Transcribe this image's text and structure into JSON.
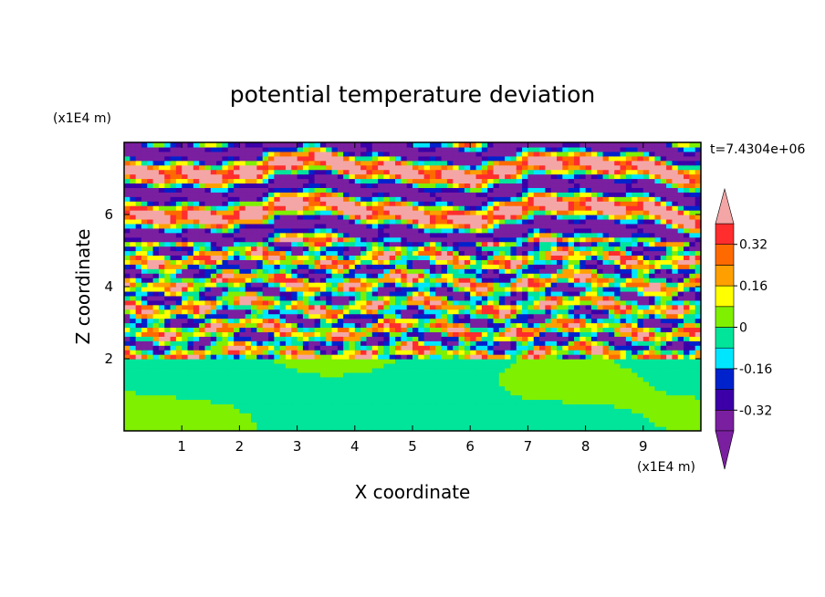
{
  "chart_data": {
    "type": "heatmap",
    "title": "potential temperature deviation",
    "xlabel": "X coordinate",
    "ylabel": "Z coordinate",
    "x_unit": "(x1E4 m)",
    "y_unit": "(x1E4 m)",
    "time_label": "t=7.4304e+06",
    "xlim": [
      0,
      10
    ],
    "ylim": [
      0,
      8
    ],
    "x_ticks": [
      1,
      2,
      3,
      4,
      5,
      6,
      7,
      8,
      9
    ],
    "y_ticks": [
      2,
      4,
      6
    ],
    "x_tick_labels": [
      "1",
      "2",
      "3",
      "4",
      "5",
      "6",
      "7",
      "8",
      "9"
    ],
    "y_tick_labels": [
      "2",
      "4",
      "6"
    ],
    "colorbar": {
      "levels": [
        -0.4,
        -0.32,
        -0.24,
        -0.16,
        -0.08,
        0,
        0.08,
        0.16,
        0.24,
        0.32,
        0.4
      ],
      "labels": [
        "0.32",
        "0.16",
        "0",
        "-0.16",
        "-0.32"
      ],
      "label_values": [
        0.32,
        0.16,
        0,
        -0.16,
        -0.32
      ],
      "colors": [
        "#7a1fa0",
        "#3b00a8",
        "#0022cc",
        "#00e6ff",
        "#00e59a",
        "#7ff000",
        "#ffff00",
        "#ffa000",
        "#ff6a00",
        "#ff2d2d",
        "#f4a6a6"
      ],
      "extend": "both"
    },
    "bands": [
      {
        "z0": 0.0,
        "z1": 2.0,
        "pattern": "smooth",
        "value": 0.0
      },
      {
        "z0": 2.0,
        "z1": 5.2,
        "pattern": "noisy",
        "value": 0.0
      },
      {
        "z0": 5.2,
        "z1": 8.0,
        "pattern": "stripes",
        "value": 0.0
      }
    ]
  }
}
